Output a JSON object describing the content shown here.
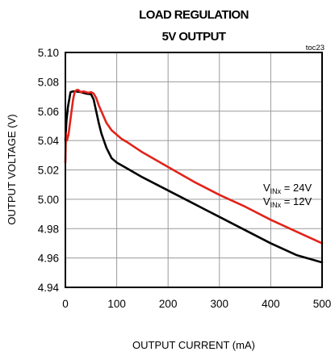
{
  "chart_data": {
    "type": "line",
    "title_line1": "LOAD REGULATION",
    "title_line2": "5V OUTPUT",
    "tag": "toc23",
    "xlabel": "OUTPUT CURRENT (mA)",
    "ylabel": "OUTPUT VOLTAGE (V)",
    "xlim": [
      0,
      500
    ],
    "ylim": [
      4.94,
      5.1
    ],
    "xticks": [
      "0",
      "100",
      "200",
      "300",
      "400",
      "500"
    ],
    "yticks": [
      "4.94",
      "4.96",
      "4.98",
      "5.00",
      "5.02",
      "5.04",
      "5.06",
      "5.08",
      "5.10"
    ],
    "grid": true,
    "annotations": {
      "line1": {
        "prefix": "V",
        "sub": "INx",
        "suffix": " = 24V"
      },
      "line2": {
        "prefix": "V",
        "sub": "INx",
        "suffix": " = 12V"
      }
    },
    "series": [
      {
        "color": "#000000",
        "x": [
          0,
          2,
          5,
          10,
          15,
          20,
          30,
          40,
          50,
          55,
          60,
          65,
          70,
          75,
          80,
          90,
          100,
          110,
          120,
          150,
          200,
          250,
          300,
          350,
          400,
          450,
          500
        ],
        "y": [
          5.04,
          5.053,
          5.063,
          5.073,
          5.0735,
          5.0735,
          5.073,
          5.072,
          5.0715,
          5.068,
          5.06,
          5.052,
          5.045,
          5.04,
          5.035,
          5.028,
          5.025,
          5.023,
          5.021,
          5.015,
          5.006,
          4.997,
          4.988,
          4.979,
          4.97,
          4.962,
          4.957
        ]
      },
      {
        "color": "#e2231a",
        "x": [
          0,
          1,
          3,
          6,
          9,
          12,
          15,
          18,
          22,
          25,
          30,
          35,
          40,
          45,
          50,
          55,
          60,
          65,
          70,
          80,
          90,
          100,
          110,
          120,
          150,
          200,
          250,
          300,
          350,
          400,
          450,
          500
        ],
        "y": [
          5.025,
          5.045,
          5.04,
          5.044,
          5.052,
          5.06,
          5.068,
          5.073,
          5.0745,
          5.0745,
          5.073,
          5.0735,
          5.073,
          5.0725,
          5.073,
          5.072,
          5.069,
          5.064,
          5.06,
          5.052,
          5.047,
          5.044,
          5.041,
          5.039,
          5.032,
          5.022,
          5.012,
          5.003,
          4.995,
          4.986,
          4.978,
          4.97
        ]
      }
    ]
  }
}
